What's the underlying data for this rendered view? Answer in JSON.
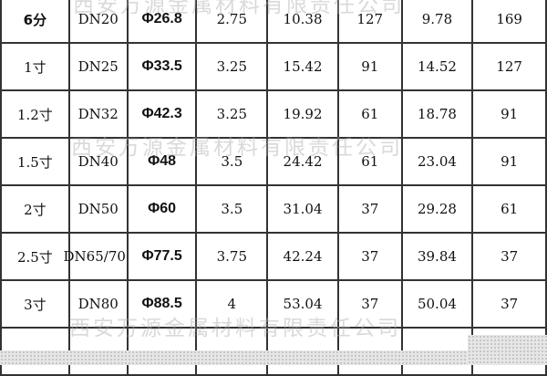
{
  "watermark": "西安万源金属材料有限责任公司",
  "rows": [
    [
      "6分",
      "DN20",
      "Φ26.8",
      "2.75",
      "10.38",
      "127",
      "9.78",
      "169"
    ],
    [
      "1寸",
      "DN25",
      "Φ33.5",
      "3.25",
      "15.42",
      "91",
      "14.52",
      "127"
    ],
    [
      "1.2寸",
      "DN32",
      "Φ42.3",
      "3.25",
      "19.92",
      "61",
      "18.78",
      "91"
    ],
    [
      "1.5寸",
      "DN40",
      "Φ48",
      "3.5",
      "24.42",
      "61",
      "23.04",
      "91"
    ],
    [
      "2寸",
      "DN50",
      "Φ60",
      "3.5",
      "31.04",
      "37",
      "29.28",
      "61"
    ],
    [
      "2.5寸",
      "DN65/70",
      "Φ77.5",
      "3.75",
      "42.24",
      "37",
      "39.84",
      "37"
    ],
    [
      "3寸",
      "DN80",
      "Φ88.5",
      "4",
      "53.04",
      "37",
      "50.04",
      "37"
    ],
    [
      "",
      "",
      "",
      "",
      "",
      "",
      "",
      ""
    ]
  ]
}
